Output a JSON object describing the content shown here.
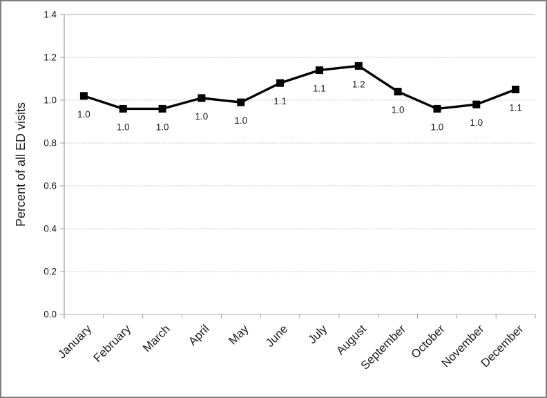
{
  "chart_data": {
    "type": "line",
    "title": "",
    "xlabel": "",
    "ylabel": "Percent of all ED visits",
    "categories": [
      "January",
      "February",
      "March",
      "April",
      "May",
      "June",
      "July",
      "August",
      "September",
      "October",
      "November",
      "December"
    ],
    "series": [
      {
        "name": "Percent of all ED visits",
        "values": [
          1.02,
          0.96,
          0.96,
          1.01,
          0.99,
          1.08,
          1.14,
          1.16,
          1.04,
          0.96,
          0.98,
          1.05
        ],
        "point_labels": [
          "1.0",
          "1.0",
          "1.0",
          "1.0",
          "1.0",
          "1.1",
          "1.1",
          "1.2",
          "1.0",
          "1.0",
          "1.0",
          "1.1"
        ],
        "color": "#000000",
        "marker": "square"
      }
    ],
    "ylim": [
      0.0,
      1.4
    ],
    "ytick_step": 0.2,
    "ytick_labels": [
      "0.0",
      "0.2",
      "0.4",
      "0.6",
      "0.8",
      "1.0",
      "1.2",
      "1.4"
    ],
    "grid": true,
    "legend": false,
    "colors": {
      "gridline": "#c9c9c9",
      "top_gridline": "#a6a6a6",
      "baseline": "#b3b3b3",
      "axis": "#9c9c9c",
      "text": "#1a1a1a",
      "frame_border": "#7f7f7f"
    }
  }
}
